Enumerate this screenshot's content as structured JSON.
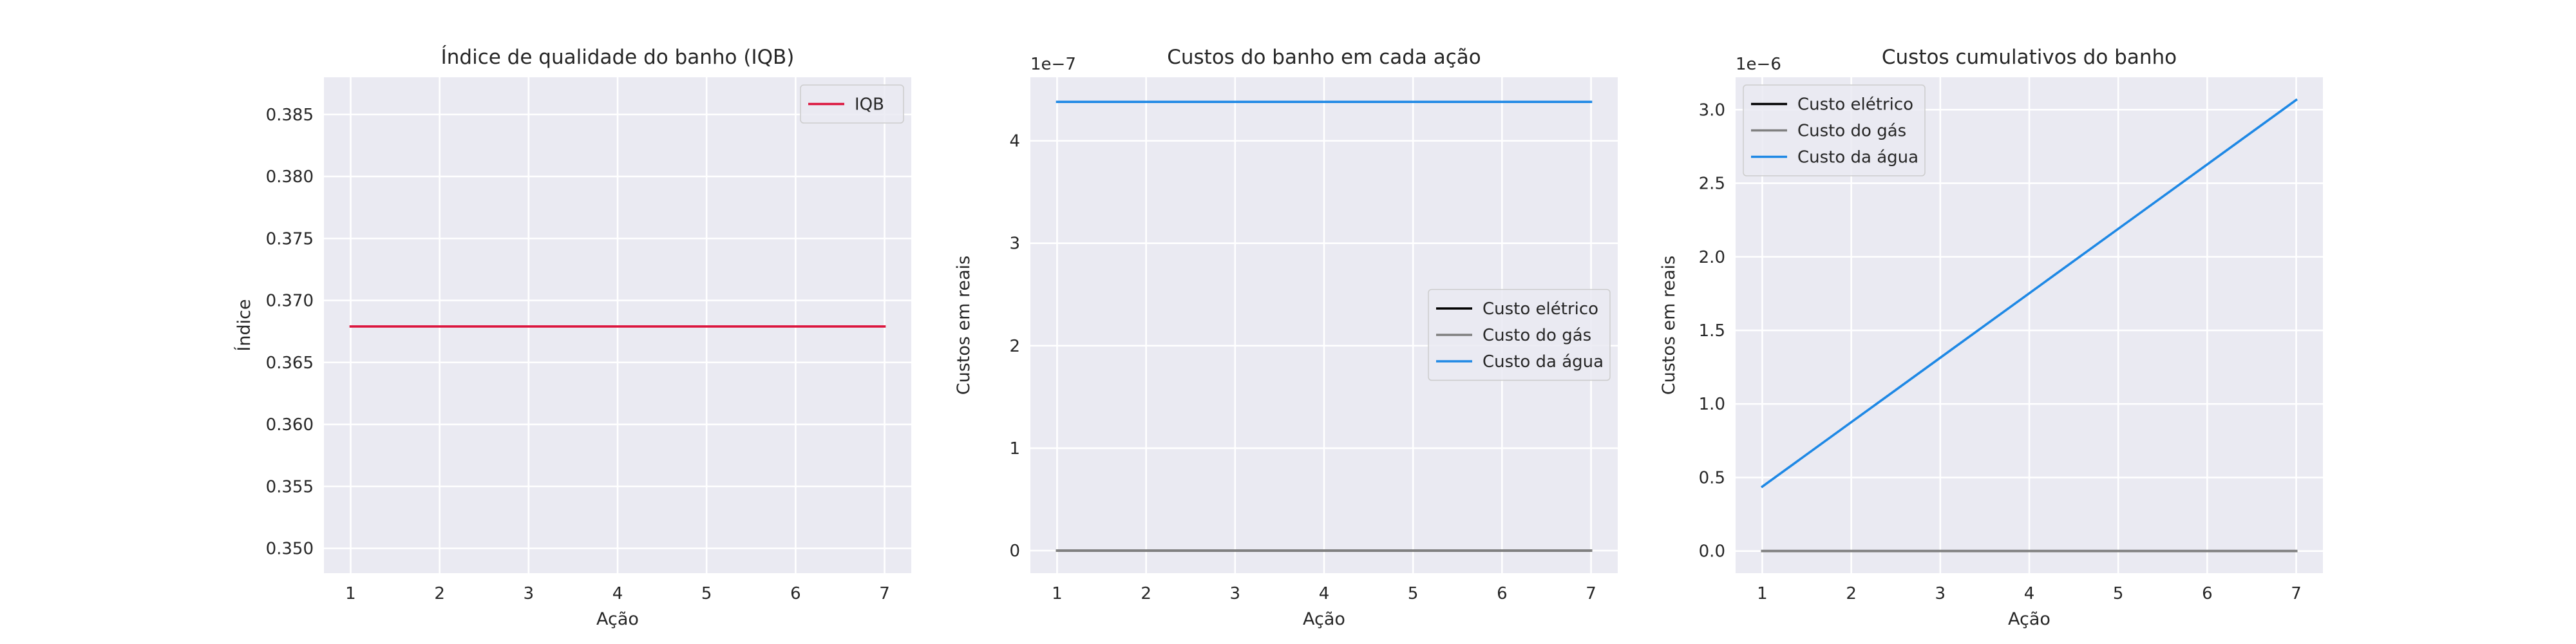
{
  "chart_data": [
    {
      "type": "line",
      "title": "Índice de qualidade do banho (IQB)",
      "xlabel": "Ação",
      "ylabel": "Índice",
      "x": [
        1,
        2,
        3,
        4,
        5,
        6,
        7
      ],
      "xlim": [
        0.7,
        7.3
      ],
      "ylim": [
        0.348,
        0.388
      ],
      "xticks": [
        1,
        2,
        3,
        4,
        5,
        6,
        7
      ],
      "yticks": [
        "0.350",
        "0.355",
        "0.360",
        "0.365",
        "0.370",
        "0.375",
        "0.380",
        "0.385"
      ],
      "ytick_values": [
        0.35,
        0.355,
        0.36,
        0.365,
        0.37,
        0.375,
        0.38,
        0.385
      ],
      "offset_text": "",
      "grid": true,
      "legend": "top-right",
      "series": [
        {
          "name": "IQB",
          "color": "#dc143c",
          "values": [
            0.3679,
            0.3679,
            0.3679,
            0.3679,
            0.3679,
            0.3679,
            0.3679
          ]
        }
      ]
    },
    {
      "type": "line",
      "title": "Custos do banho em cada ação",
      "xlabel": "Ação",
      "ylabel": "Custos em reais",
      "x": [
        1,
        2,
        3,
        4,
        5,
        6,
        7
      ],
      "xlim": [
        0.7,
        7.3
      ],
      "ylim": [
        -2.2e-08,
        4.62e-07
      ],
      "xticks": [
        1,
        2,
        3,
        4,
        5,
        6,
        7
      ],
      "yticks": [
        "0",
        "1",
        "2",
        "3",
        "4"
      ],
      "ytick_values": [
        0,
        1e-07,
        2e-07,
        3e-07,
        4e-07
      ],
      "offset_text": "1e−7",
      "grid": true,
      "legend": "center-right",
      "series": [
        {
          "name": "Custo elétrico",
          "color": "#000000",
          "values": [
            0,
            0,
            0,
            0,
            0,
            0,
            0
          ]
        },
        {
          "name": "Custo do gás",
          "color": "#808080",
          "values": [
            0,
            0,
            0,
            0,
            0,
            0,
            0
          ]
        },
        {
          "name": "Custo da água",
          "color": "#1e88e5",
          "values": [
            4.38e-07,
            4.38e-07,
            4.38e-07,
            4.38e-07,
            4.38e-07,
            4.38e-07,
            4.38e-07
          ]
        }
      ]
    },
    {
      "type": "line",
      "title": "Custos cumulativos do banho",
      "xlabel": "Ação",
      "ylabel": "Custos em reais",
      "x": [
        1,
        2,
        3,
        4,
        5,
        6,
        7
      ],
      "xlim": [
        0.7,
        7.3
      ],
      "ylim": [
        -1.5e-07,
        3.22e-06
      ],
      "xticks": [
        1,
        2,
        3,
        4,
        5,
        6,
        7
      ],
      "yticks": [
        "0.0",
        "0.5",
        "1.0",
        "1.5",
        "2.0",
        "2.5",
        "3.0"
      ],
      "ytick_values": [
        0,
        5e-07,
        1e-06,
        1.5e-06,
        2e-06,
        2.5e-06,
        3e-06
      ],
      "offset_text": "1e−6",
      "grid": true,
      "legend": "top-left",
      "series": [
        {
          "name": "Custo elétrico",
          "color": "#000000",
          "values": [
            0,
            0,
            0,
            0,
            0,
            0,
            0
          ]
        },
        {
          "name": "Custo do gás",
          "color": "#808080",
          "values": [
            0,
            0,
            0,
            0,
            0,
            0,
            0
          ]
        },
        {
          "name": "Custo da água",
          "color": "#1e88e5",
          "values": [
            4.38e-07,
            8.76e-07,
            1.314e-06,
            1.752e-06,
            2.19e-06,
            2.628e-06,
            3.066e-06
          ]
        }
      ]
    }
  ]
}
